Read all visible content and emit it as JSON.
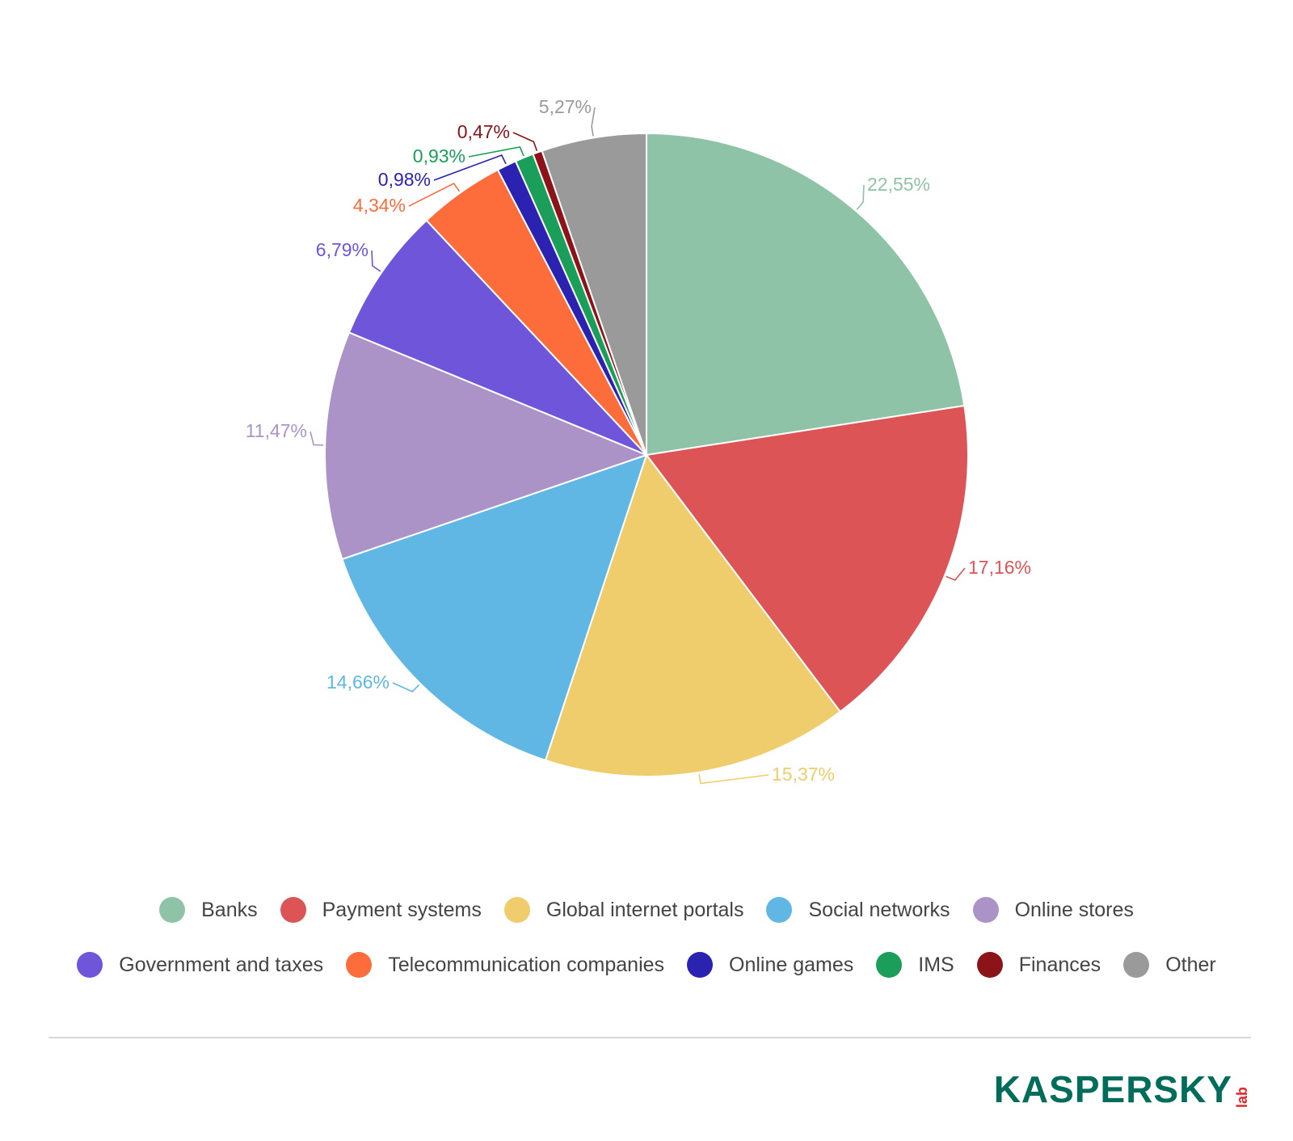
{
  "chart_data": {
    "type": "pie",
    "title": "",
    "start_angle_deg": 0,
    "direction": "clockwise",
    "slices": [
      {
        "name": "Banks",
        "value": 22.55,
        "label": "22,55%",
        "color": "#8fc3a7"
      },
      {
        "name": "Payment systems",
        "value": 17.16,
        "label": "17,16%",
        "color": "#dd5457"
      },
      {
        "name": "Global internet portals",
        "value": 15.37,
        "label": "15,37%",
        "color": "#efcc6c"
      },
      {
        "name": "Social networks",
        "value": 14.66,
        "label": "14,66%",
        "color": "#60b7e3"
      },
      {
        "name": "Online stores",
        "value": 11.47,
        "label": "11,47%",
        "color": "#ab93c8"
      },
      {
        "name": "Government and taxes",
        "value": 6.79,
        "label": "6,79%",
        "color": "#6f55da"
      },
      {
        "name": "Telecommunication companies",
        "value": 4.34,
        "label": "4,34%",
        "color": "#fd6c3b"
      },
      {
        "name": "Online games",
        "value": 0.98,
        "label": "0,98%",
        "color": "#2c22b1"
      },
      {
        "name": "IMS",
        "value": 0.93,
        "label": "0,93%",
        "color": "#1a9e5a"
      },
      {
        "name": "Finances",
        "value": 0.47,
        "label": "0,47%",
        "color": "#8c1318"
      },
      {
        "name": "Other",
        "value": 5.27,
        "label": "5,27%",
        "color": "#9a9a9a"
      }
    ],
    "legend_placement": "bottom"
  },
  "legend": {
    "row1": [
      {
        "label": "Banks",
        "color": "#8fc3a7"
      },
      {
        "label": "Payment systems",
        "color": "#dd5457"
      },
      {
        "label": "Global internet portals",
        "color": "#efcc6c"
      },
      {
        "label": "Social networks",
        "color": "#60b7e3"
      },
      {
        "label": "Online stores",
        "color": "#ab93c8"
      }
    ],
    "row2": [
      {
        "label": "Government and taxes",
        "color": "#6f55da"
      },
      {
        "label": "Telecommunication companies",
        "color": "#fd6c3b"
      },
      {
        "label": "Online games",
        "color": "#2c22b1"
      },
      {
        "label": "IMS",
        "color": "#1a9e5a"
      },
      {
        "label": "Finances",
        "color": "#8c1318"
      },
      {
        "label": "Other",
        "color": "#9a9a9a"
      }
    ]
  },
  "brand": {
    "name": "KASPERSKY",
    "suffix": "lab",
    "name_color": "#006d5b",
    "suffix_color": "#e3262b"
  }
}
